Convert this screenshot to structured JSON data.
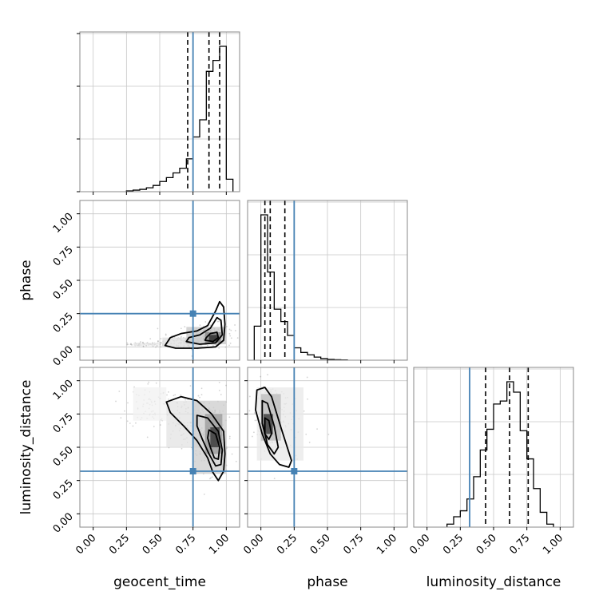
{
  "chart_data": {
    "type": "corner",
    "parameters": [
      "geocent_time",
      "phase",
      "luminosity_distance"
    ],
    "axis_labels": {
      "geocent_time": "geocent_time",
      "phase": "phase",
      "luminosity_distance": "luminosity_distance"
    },
    "tick_values": [
      0.0,
      0.25,
      0.5,
      0.75,
      1.0
    ],
    "tick_labels": [
      "0.00",
      "0.25",
      "0.50",
      "0.75",
      "1.00"
    ],
    "injection": {
      "geocent_time": 0.75,
      "phase": 0.25,
      "luminosity_distance": 0.32
    },
    "quantiles": {
      "geocent_time": [
        0.71,
        0.87,
        0.95
      ],
      "phase": [
        0.03,
        0.07,
        0.18
      ],
      "luminosity_distance": [
        0.44,
        0.62,
        0.76
      ]
    },
    "histograms": {
      "geocent_time": {
        "edges": [
          0.25,
          0.3,
          0.35,
          0.4,
          0.45,
          0.5,
          0.55,
          0.6,
          0.65,
          0.7,
          0.75,
          0.8,
          0.85,
          0.9,
          0.95,
          1.0,
          1.05
        ],
        "counts": [
          0.005,
          0.01,
          0.015,
          0.025,
          0.04,
          0.065,
          0.09,
          0.12,
          0.15,
          0.21,
          0.35,
          0.46,
          0.77,
          0.84,
          0.93,
          0.08
        ]
      },
      "phase": {
        "edges": [
          -0.05,
          0.0,
          0.05,
          0.1,
          0.15,
          0.2,
          0.25,
          0.3,
          0.35,
          0.4,
          0.45,
          0.5,
          0.55,
          0.6,
          0.65
        ],
        "counts": [
          0.22,
          0.94,
          0.57,
          0.33,
          0.25,
          0.16,
          0.08,
          0.05,
          0.035,
          0.02,
          0.01,
          0.005,
          0.003,
          0.002
        ]
      },
      "luminosity_distance": {
        "edges": [
          0.15,
          0.2,
          0.25,
          0.3,
          0.35,
          0.4,
          0.45,
          0.5,
          0.55,
          0.6,
          0.65,
          0.7,
          0.75,
          0.8,
          0.85,
          0.9,
          0.95
        ],
        "counts": [
          0.02,
          0.07,
          0.11,
          0.19,
          0.34,
          0.52,
          0.66,
          0.83,
          0.85,
          0.98,
          0.91,
          0.65,
          0.46,
          0.26,
          0.1,
          0.02
        ]
      }
    },
    "pairs": [
      {
        "x": "geocent_time",
        "y": "phase",
        "density": [
          {
            "x": 0.3,
            "y": 0.01,
            "w": 0.2,
            "h": 0.02,
            "level": 0.08
          },
          {
            "x": 0.52,
            "y": 0.0,
            "w": 0.3,
            "h": 0.07,
            "level": 0.15
          },
          {
            "x": 0.7,
            "y": 0.02,
            "w": 0.3,
            "h": 0.13,
            "level": 0.25
          },
          {
            "x": 0.84,
            "y": 0.03,
            "w": 0.12,
            "h": 0.08,
            "level": 0.55
          },
          {
            "x": 0.87,
            "y": 0.04,
            "w": 0.07,
            "h": 0.05,
            "level": 0.95
          }
        ],
        "contours": [
          [
            [
              0.54,
              0.01
            ],
            [
              0.62,
              -0.01
            ],
            [
              0.78,
              -0.01
            ],
            [
              0.92,
              0.0
            ],
            [
              0.98,
              0.05
            ],
            [
              0.99,
              0.17
            ],
            [
              0.98,
              0.3
            ],
            [
              0.95,
              0.34
            ],
            [
              0.92,
              0.27
            ],
            [
              0.86,
              0.16
            ],
            [
              0.78,
              0.12
            ],
            [
              0.66,
              0.1
            ],
            [
              0.58,
              0.07
            ]
          ],
          [
            [
              0.7,
              0.04
            ],
            [
              0.8,
              0.02
            ],
            [
              0.92,
              0.03
            ],
            [
              0.97,
              0.09
            ],
            [
              0.96,
              0.2
            ],
            [
              0.93,
              0.22
            ],
            [
              0.88,
              0.14
            ],
            [
              0.8,
              0.09
            ],
            [
              0.72,
              0.07
            ]
          ],
          [
            [
              0.84,
              0.05
            ],
            [
              0.9,
              0.04
            ],
            [
              0.94,
              0.07
            ],
            [
              0.93,
              0.11
            ],
            [
              0.88,
              0.1
            ],
            [
              0.85,
              0.07
            ]
          ]
        ]
      },
      {
        "x": "geocent_time",
        "y": "luminosity_distance",
        "density": [
          {
            "x": 0.3,
            "y": 0.7,
            "w": 0.25,
            "h": 0.25,
            "level": 0.06
          },
          {
            "x": 0.55,
            "y": 0.5,
            "w": 0.25,
            "h": 0.35,
            "level": 0.12
          },
          {
            "x": 0.75,
            "y": 0.3,
            "w": 0.25,
            "h": 0.55,
            "level": 0.22
          },
          {
            "x": 0.84,
            "y": 0.45,
            "w": 0.13,
            "h": 0.3,
            "level": 0.45
          },
          {
            "x": 0.88,
            "y": 0.5,
            "w": 0.07,
            "h": 0.15,
            "level": 0.9
          }
        ],
        "contours": [
          [
            [
              0.55,
              0.84
            ],
            [
              0.66,
              0.88
            ],
            [
              0.78,
              0.85
            ],
            [
              0.89,
              0.75
            ],
            [
              0.98,
              0.62
            ],
            [
              0.99,
              0.45
            ],
            [
              0.98,
              0.32
            ],
            [
              0.94,
              0.25
            ],
            [
              0.9,
              0.31
            ],
            [
              0.86,
              0.42
            ],
            [
              0.78,
              0.55
            ],
            [
              0.68,
              0.66
            ],
            [
              0.58,
              0.76
            ]
          ],
          [
            [
              0.78,
              0.74
            ],
            [
              0.86,
              0.72
            ],
            [
              0.94,
              0.62
            ],
            [
              0.97,
              0.48
            ],
            [
              0.96,
              0.37
            ],
            [
              0.92,
              0.36
            ],
            [
              0.87,
              0.45
            ],
            [
              0.82,
              0.56
            ],
            [
              0.78,
              0.66
            ]
          ],
          [
            [
              0.87,
              0.63
            ],
            [
              0.92,
              0.6
            ],
            [
              0.95,
              0.5
            ],
            [
              0.94,
              0.41
            ],
            [
              0.91,
              0.42
            ],
            [
              0.88,
              0.5
            ],
            [
              0.86,
              0.57
            ]
          ]
        ]
      },
      {
        "x": "phase",
        "y": "luminosity_distance",
        "density": [
          {
            "x": -0.03,
            "y": 0.4,
            "w": 0.35,
            "h": 0.55,
            "level": 0.1
          },
          {
            "x": 0.0,
            "y": 0.55,
            "w": 0.15,
            "h": 0.35,
            "level": 0.3
          },
          {
            "x": 0.02,
            "y": 0.6,
            "w": 0.07,
            "h": 0.15,
            "level": 0.9
          }
        ],
        "contours": [
          [
            [
              -0.03,
              0.93
            ],
            [
              0.03,
              0.95
            ],
            [
              0.08,
              0.88
            ],
            [
              0.15,
              0.65
            ],
            [
              0.23,
              0.4
            ],
            [
              0.21,
              0.35
            ],
            [
              0.14,
              0.37
            ],
            [
              0.07,
              0.45
            ],
            [
              0.01,
              0.6
            ],
            [
              -0.04,
              0.78
            ]
          ],
          [
            [
              0.01,
              0.85
            ],
            [
              0.05,
              0.83
            ],
            [
              0.1,
              0.66
            ],
            [
              0.13,
              0.5
            ],
            [
              0.1,
              0.45
            ],
            [
              0.05,
              0.52
            ],
            [
              0.01,
              0.68
            ]
          ],
          [
            [
              0.03,
              0.72
            ],
            [
              0.06,
              0.7
            ],
            [
              0.08,
              0.6
            ],
            [
              0.06,
              0.56
            ],
            [
              0.03,
              0.6
            ]
          ]
        ]
      }
    ],
    "xlim": [
      -0.1,
      1.1
    ],
    "ylim": [
      -0.1,
      1.1
    ],
    "grid": true,
    "colors": {
      "truth": "#4682b4",
      "hist": "#000000",
      "quantile": "#000000",
      "grid": "#c8c8c8",
      "scatter": "#555555"
    }
  }
}
